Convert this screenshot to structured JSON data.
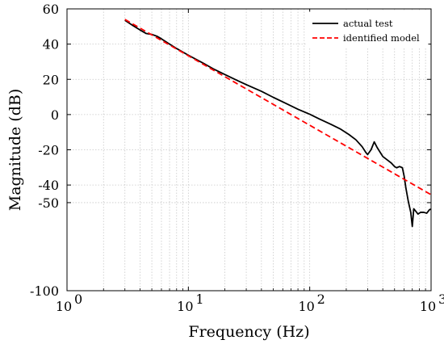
{
  "chart_data": {
    "type": "line",
    "xlabel": "Frequency  (Hz)",
    "ylabel": "Magnitude  (dB)",
    "xscale": "log",
    "xlim": [
      1,
      1000
    ],
    "ylim": [
      -100,
      60
    ],
    "grid": true,
    "legend_position": "top-right",
    "x_ticks": [
      {
        "value": 1,
        "base": "10",
        "exp": "0"
      },
      {
        "value": 10,
        "base": "10",
        "exp": "1"
      },
      {
        "value": 100,
        "base": "10",
        "exp": "2"
      },
      {
        "value": 1000,
        "base": "10",
        "exp": "3"
      }
    ],
    "y_ticks": [
      {
        "value": 60,
        "label": "60"
      },
      {
        "value": 40,
        "label": "40"
      },
      {
        "value": 20,
        "label": "20"
      },
      {
        "value": 0,
        "label": "0"
      },
      {
        "value": -20,
        "label": "-20"
      },
      {
        "value": -40,
        "label": "-40"
      },
      {
        "value": -50,
        "label": "-50"
      },
      {
        "value": -100,
        "label": "-100"
      }
    ],
    "series": [
      {
        "name": "actual test",
        "color": "#000000",
        "style": "solid",
        "x": [
          3,
          3.5,
          4,
          4.5,
          5,
          5.5,
          6,
          7,
          8,
          10,
          13,
          16,
          20,
          25,
          30,
          40,
          50,
          60,
          80,
          100,
          120,
          150,
          180,
          210,
          240,
          270,
          290,
          300,
          320,
          340,
          360,
          400,
          440,
          470,
          500,
          520,
          550,
          580,
          600,
          620,
          650,
          680,
          700,
          720,
          750,
          780,
          820,
          870,
          920,
          970,
          1000
        ],
        "y": [
          53.5,
          50.5,
          48,
          46,
          45.5,
          44.5,
          43,
          40,
          37.5,
          33.7,
          29.5,
          26,
          22.7,
          19.5,
          17,
          13.2,
          9.8,
          7.2,
          3,
          0.2,
          -2.5,
          -5.6,
          -8.3,
          -11.3,
          -14.3,
          -18.2,
          -21.5,
          -22.7,
          -20,
          -15.5,
          -18.8,
          -23.8,
          -26,
          -27.5,
          -29.5,
          -30.2,
          -29.5,
          -30.2,
          -35,
          -41.7,
          -49.5,
          -55.5,
          -63.5,
          -53.5,
          -55,
          -56.5,
          -55.5,
          -55.5,
          -56,
          -54,
          -53.7
        ]
      },
      {
        "name": "identified model",
        "color": "#ff0000",
        "style": "dashed",
        "x": [
          3,
          1000
        ],
        "y": [
          54,
          -45.5
        ]
      }
    ]
  }
}
